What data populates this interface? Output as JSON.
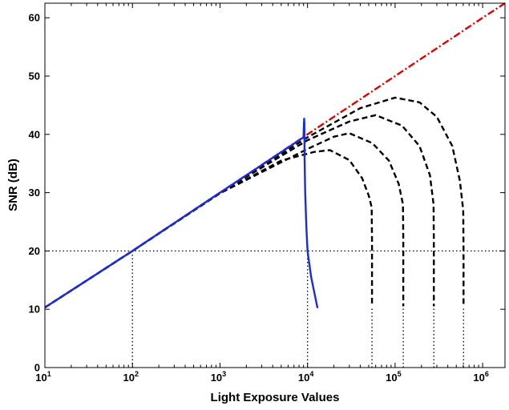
{
  "chart_data": {
    "type": "line",
    "title": "",
    "xlabel": "Light Exposure Values",
    "ylabel": "SNR (dB)",
    "xscale": "log",
    "xlim": [
      10,
      1800000
    ],
    "ylim": [
      0,
      62.5
    ],
    "grid": false,
    "legend": "none",
    "x_ticks": [
      {
        "value": 10,
        "base": "10",
        "exp": "1"
      },
      {
        "value": 100,
        "base": "10",
        "exp": "2"
      },
      {
        "value": 1000,
        "base": "10",
        "exp": "3"
      },
      {
        "value": 10000,
        "base": "10",
        "exp": "4"
      },
      {
        "value": 100000,
        "base": "10",
        "exp": "5"
      },
      {
        "value": 1000000,
        "base": "10",
        "exp": "6"
      }
    ],
    "y_ticks": [
      0,
      10,
      20,
      30,
      40,
      50,
      60
    ],
    "series": [
      {
        "style": "dashdot",
        "color": "#e00000",
        "points": [
          [
            10,
            10.3
          ],
          [
            100,
            20
          ],
          [
            1000,
            30
          ],
          [
            10000,
            40
          ],
          [
            100000,
            50
          ],
          [
            1000000,
            60
          ],
          [
            1800000,
            62.5
          ]
        ]
      },
      {
        "style": "dashed",
        "color": "#000000",
        "points": [
          [
            10,
            10.3
          ],
          [
            100,
            20
          ],
          [
            1000,
            29.9
          ],
          [
            5000,
            35.5
          ],
          [
            12000,
            37
          ],
          [
            18000,
            37.3
          ],
          [
            30000,
            35.6
          ],
          [
            42000,
            32.5
          ],
          [
            50000,
            29.5
          ],
          [
            54000,
            27.5
          ],
          [
            54500,
            22
          ],
          [
            54500,
            10.5
          ]
        ]
      },
      {
        "style": "dashed",
        "color": "#000000",
        "points": [
          [
            10,
            10.3
          ],
          [
            100,
            20
          ],
          [
            1000,
            29.9
          ],
          [
            10000,
            37.5
          ],
          [
            20000,
            39.6
          ],
          [
            30000,
            40.2
          ],
          [
            55000,
            38.5
          ],
          [
            85000,
            35.5
          ],
          [
            110000,
            31.5
          ],
          [
            123000,
            28
          ],
          [
            124000,
            22
          ],
          [
            124000,
            10.5
          ]
        ]
      },
      {
        "style": "dashed",
        "color": "#000000",
        "points": [
          [
            10,
            10.3
          ],
          [
            100,
            20
          ],
          [
            1000,
            30
          ],
          [
            10000,
            39
          ],
          [
            30000,
            42.2
          ],
          [
            60000,
            43.3
          ],
          [
            120000,
            41.5
          ],
          [
            190000,
            38
          ],
          [
            250000,
            33
          ],
          [
            275000,
            28
          ],
          [
            277000,
            22
          ],
          [
            277000,
            10.5
          ]
        ]
      },
      {
        "style": "dashed",
        "color": "#000000",
        "points": [
          [
            10,
            10.3
          ],
          [
            100,
            20
          ],
          [
            1000,
            30
          ],
          [
            10000,
            39.5
          ],
          [
            40000,
            44.5
          ],
          [
            100000,
            46.3
          ],
          [
            190000,
            45.5
          ],
          [
            300000,
            43
          ],
          [
            450000,
            38
          ],
          [
            550000,
            32
          ],
          [
            600000,
            27
          ],
          [
            605000,
            20
          ],
          [
            605000,
            10.5
          ]
        ]
      },
      {
        "style": "solid",
        "color": "#1a2ed8",
        "points": [
          [
            10,
            10.3
          ],
          [
            100,
            20
          ],
          [
            1000,
            30
          ],
          [
            9000,
            39.5
          ],
          [
            9050,
            41
          ],
          [
            9150,
            42.7
          ],
          [
            9200,
            42
          ],
          [
            9250,
            36
          ],
          [
            9400,
            30
          ],
          [
            9700,
            24
          ],
          [
            10000,
            20
          ],
          [
            11000,
            15.5
          ],
          [
            13000,
            10.2
          ]
        ]
      }
    ],
    "reference_lines": [
      {
        "orientation": "horizontal",
        "y": 20,
        "x_from": 10,
        "x_to": 1800000
      },
      {
        "orientation": "vertical",
        "x": 100,
        "y_from": 0,
        "y_to": 20
      },
      {
        "orientation": "vertical",
        "x": 10000,
        "y_from": 0,
        "y_to": 20
      },
      {
        "orientation": "vertical",
        "x": 54500,
        "y_from": 0,
        "y_to": 10.5
      },
      {
        "orientation": "vertical",
        "x": 124000,
        "y_from": 0,
        "y_to": 10.5
      },
      {
        "orientation": "vertical",
        "x": 277000,
        "y_from": 0,
        "y_to": 10.5
      },
      {
        "orientation": "vertical",
        "x": 605000,
        "y_from": 0,
        "y_to": 10.5
      }
    ]
  }
}
